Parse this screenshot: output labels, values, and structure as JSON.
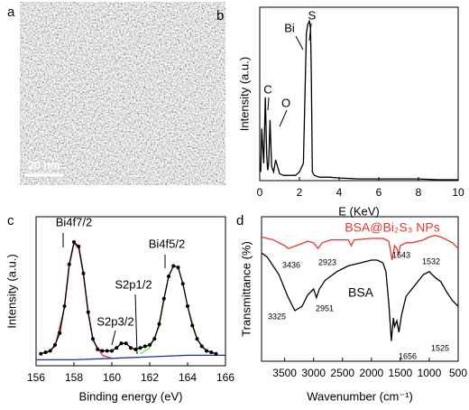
{
  "image_panel": {
    "panel_label": "a",
    "scale_bar": "20 nm"
  },
  "chart_data": [
    {
      "type": "line",
      "panel_label": "b",
      "xlabel": "E (KeV)",
      "ylabel": "Intensity (a.u.)",
      "xlim": [
        0,
        10
      ],
      "ylim": [
        0,
        100
      ],
      "xticks": [
        0,
        2,
        4,
        6,
        8,
        10
      ],
      "annotations": [
        "C",
        "O",
        "Bi",
        "S"
      ],
      "series": [
        {
          "color": "#000000",
          "x": [
            0.05,
            0.1,
            0.2,
            0.28,
            0.35,
            0.4,
            0.45,
            0.52,
            0.6,
            0.7,
            0.8,
            1.0,
            1.2,
            1.5,
            1.8,
            2.0,
            2.2,
            2.3,
            2.35,
            2.42,
            2.5,
            2.56,
            2.6,
            2.65,
            2.75,
            3.0,
            3.5,
            4,
            5,
            6,
            7,
            8,
            9,
            10
          ],
          "values": [
            5,
            30,
            10,
            48,
            15,
            6,
            10,
            35,
            8,
            5,
            12,
            4,
            3,
            3,
            3,
            5,
            10,
            60,
            85,
            90,
            92,
            88,
            60,
            5,
            3,
            2,
            2,
            1.5,
            1,
            1,
            1,
            1,
            0.5,
            0.5
          ]
        }
      ]
    },
    {
      "type": "line",
      "panel_label": "c",
      "xlabel": "Binding energy (eV)",
      "ylabel": "Intensity (a.u.)",
      "xlim": [
        156,
        166
      ],
      "ylim": [
        0,
        100
      ],
      "xticks": [
        156,
        158,
        160,
        162,
        164,
        166
      ],
      "annotations": [
        "Bi4f7/2",
        "S2p3/2",
        "S2p1/2",
        "Bi4f5/2"
      ],
      "series": [
        {
          "color": "#e8362a",
          "x": [
            156.5,
            157,
            157.5,
            157.75,
            158,
            158.25,
            158.5,
            158.75,
            159,
            159.5,
            160
          ],
          "values": [
            8,
            13,
            39,
            67,
            82,
            79,
            61,
            35,
            17,
            7,
            5
          ]
        },
        {
          "color": "#7ed957",
          "x": [
            161.5,
            162,
            162.5,
            162.75,
            163,
            163.25,
            163.5,
            163.75,
            164,
            164.5,
            165,
            165.5
          ],
          "values": [
            8,
            12,
            26,
            44,
            60,
            67,
            66,
            55,
            40,
            18,
            10,
            8
          ]
        },
        {
          "color": "#1a2ea8",
          "x": [
            156,
            158,
            160,
            162,
            164,
            166
          ],
          "values": [
            4,
            4,
            5,
            6,
            7,
            7
          ]
        },
        {
          "color": "#000000",
          "markers": true,
          "x": [
            156.25,
            156.5,
            156.75,
            157,
            157.25,
            157.5,
            157.75,
            158,
            158.25,
            158.5,
            158.75,
            159,
            159.25,
            159.5,
            159.75,
            160,
            160.25,
            160.5,
            160.75,
            161,
            161.25,
            161.5,
            161.75,
            162,
            162.25,
            162.5,
            162.75,
            163,
            163.25,
            163.5,
            163.75,
            164,
            164.25,
            164.5,
            164.75,
            165,
            165.25,
            165.5
          ],
          "values": [
            8,
            9,
            10,
            14,
            22,
            40,
            68,
            83,
            80,
            62,
            36,
            18,
            11,
            10,
            10,
            10,
            12,
            15,
            15,
            12,
            11,
            12,
            13,
            14,
            18,
            28,
            45,
            60,
            67,
            66,
            55,
            40,
            27,
            18,
            13,
            10,
            9,
            8
          ]
        }
      ]
    },
    {
      "type": "line",
      "panel_label": "d",
      "xlabel": "Wavenumber (cm⁻¹)",
      "ylabel": "Transmittance (%)",
      "xlim": [
        3900,
        500
      ],
      "ylim": [
        0,
        100
      ],
      "xticks": [
        3500,
        3000,
        2500,
        2000,
        1500,
        1000,
        500
      ],
      "annotations": [
        "BSA@Bi₂S₃ NPs",
        "BSA",
        "3436",
        "2923",
        "1643",
        "1532",
        "3325",
        "2951",
        "1656",
        "1525"
      ],
      "series": [
        {
          "color": "#e8362a",
          "x": [
            3900,
            3700,
            3500,
            3436,
            3300,
            3100,
            3000,
            2923,
            2850,
            2700,
            2400,
            2350,
            2300,
            2000,
            1800,
            1700,
            1643,
            1600,
            1560,
            1532,
            1500,
            1400,
            1300,
            1200,
            1100,
            1000,
            900,
            800,
            700,
            600,
            500
          ],
          "values": [
            86,
            84,
            80,
            78,
            80,
            83,
            82,
            78,
            82,
            84,
            84,
            80,
            84,
            85,
            85,
            83,
            70,
            80,
            78,
            74,
            80,
            82,
            82,
            83,
            84,
            86,
            87,
            86,
            84,
            82,
            78
          ]
        },
        {
          "color": "#000000",
          "x": [
            3900,
            3800,
            3600,
            3450,
            3325,
            3200,
            3100,
            3000,
            2951,
            2900,
            2800,
            2600,
            2400,
            2200,
            2000,
            1900,
            1800,
            1750,
            1700,
            1656,
            1620,
            1600,
            1560,
            1525,
            1480,
            1400,
            1300,
            1200,
            1100,
            1000,
            900,
            800,
            700,
            600,
            500
          ],
          "values": [
            75,
            72,
            60,
            45,
            35,
            38,
            46,
            50,
            44,
            50,
            56,
            62,
            66,
            68,
            70,
            70,
            68,
            62,
            40,
            14,
            30,
            24,
            28,
            20,
            32,
            45,
            50,
            55,
            60,
            62,
            58,
            55,
            48,
            42,
            38
          ]
        }
      ]
    }
  ]
}
